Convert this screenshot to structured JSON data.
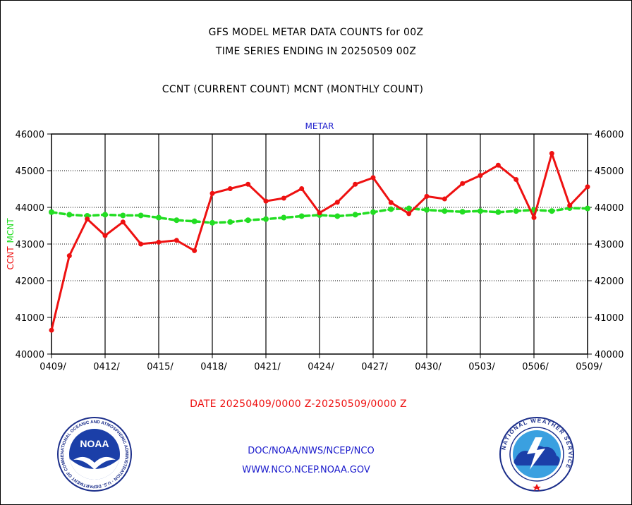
{
  "titles": {
    "line1": "GFS MODEL METAR DATA COUNTS for 00Z",
    "line2": "TIME SERIES ENDING IN 20250509 00Z",
    "line3": "CCNT (CURRENT COUNT) MCNT (MONTHLY COUNT)"
  },
  "footer": {
    "date_range": "DATE 20250409/0000 Z-20250509/0000 Z",
    "org": "DOC/NOAA/NWS/NCEP/NCO",
    "url": "WWW.NCO.NCEP.NOAA.GOV"
  },
  "logos": {
    "noaa_text": "NOAA",
    "noaa_ring": "NATIONAL OCEANIC AND ATMOSPHERIC ADMINISTRATION · U.S. DEPARTMENT OF COMMERCE",
    "nws_ring": "NATIONAL WEATHER SERVICE"
  },
  "chart_data": {
    "type": "line",
    "title": "METAR",
    "ylabel_left_ccnt": "CCNT",
    "ylabel_left_mcnt": "MCNT",
    "ylim": [
      40000,
      46000
    ],
    "yticks": [
      40000,
      41000,
      42000,
      43000,
      44000,
      45000,
      46000
    ],
    "xticks": [
      "0409/",
      "0412/",
      "0415/",
      "0418/",
      "0421/",
      "0424/",
      "0427/",
      "0430/",
      "0503/",
      "0506/",
      "0509/"
    ],
    "x_days": 30,
    "grid": true,
    "colors": {
      "ccnt": "#ee1111",
      "mcnt": "#22dd22",
      "title": "#1a1acc",
      "grid": "#000000"
    },
    "series": [
      {
        "name": "CCNT",
        "values": [
          40650,
          42680,
          43680,
          43230,
          43600,
          43000,
          43050,
          43100,
          42820,
          44380,
          44510,
          44630,
          44170,
          44250,
          44510,
          43850,
          44140,
          44630,
          44810,
          44130,
          43830,
          44300,
          44230,
          44650,
          44870,
          45150,
          44760,
          43720,
          45470,
          44050,
          44560
        ]
      },
      {
        "name": "MCNT",
        "values": [
          43870,
          43800,
          43770,
          43800,
          43780,
          43780,
          43720,
          43650,
          43620,
          43580,
          43600,
          43650,
          43680,
          43720,
          43760,
          43790,
          43760,
          43800,
          43870,
          43950,
          43970,
          43930,
          43900,
          43880,
          43900,
          43870,
          43900,
          43930,
          43900,
          43980,
          43970
        ]
      }
    ]
  }
}
